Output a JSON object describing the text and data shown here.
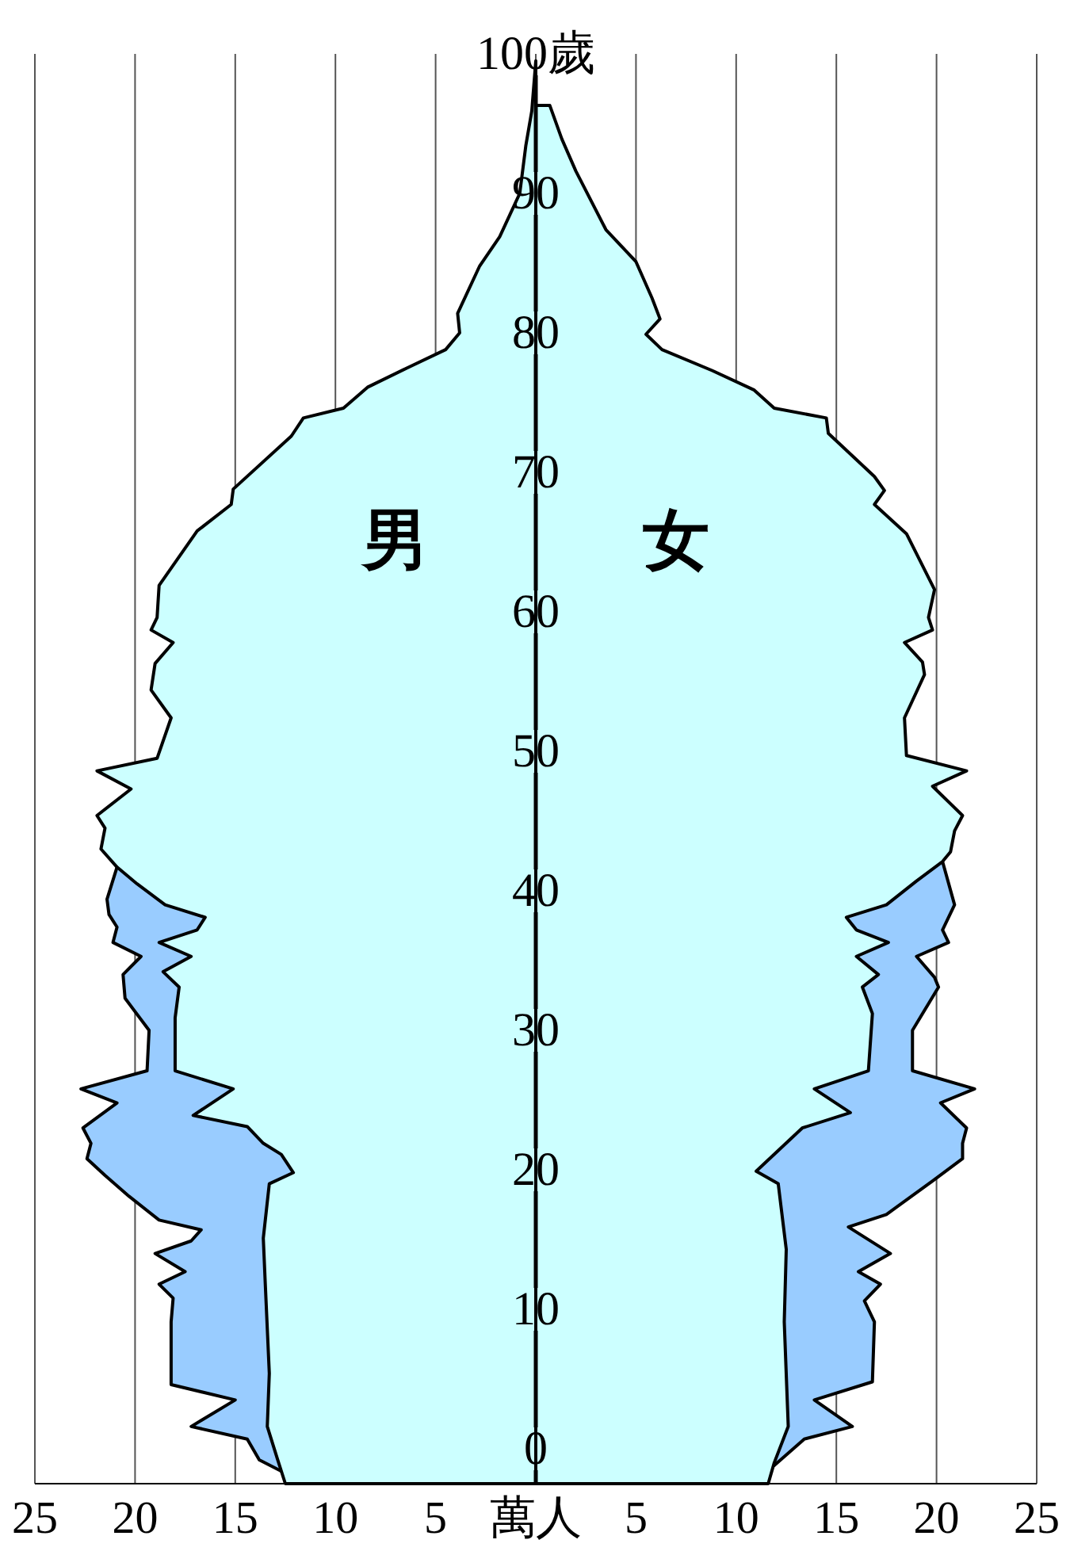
{
  "chart_data": {
    "type": "area",
    "orientation": "horizontal",
    "grid": "x",
    "xlim": [
      -25,
      25
    ],
    "ylim": [
      -2.5,
      100
    ],
    "xticks": [
      {
        "value": -25,
        "label": "25"
      },
      {
        "value": -20,
        "label": "20"
      },
      {
        "value": -15,
        "label": "15"
      },
      {
        "value": -10,
        "label": "10"
      },
      {
        "value": -5,
        "label": "5"
      },
      {
        "value": 0,
        "label": "萬人"
      },
      5,
      10,
      15,
      20,
      25
    ],
    "yticks": [
      0,
      10,
      20,
      30,
      40,
      50,
      60,
      70,
      80,
      90,
      {
        "value": 100,
        "label": "100歲"
      }
    ],
    "series": [
      {
        "color": "#99ccff",
        "x": [
          41.7,
          39.4,
          38.3,
          37.4,
          36.3,
          35.3,
          34.0,
          32.3,
          30.0,
          27.1,
          25.8,
          24.8,
          23.0,
          21.9,
          20.8,
          19.6,
          18.1,
          16.4,
          15.7,
          14.9,
          14.0,
          12.7,
          11.8,
          10.8,
          9.1,
          4.6,
          3.5,
          1.6,
          0.7,
          -0.8,
          -1.6
        ],
        "values": [
          -20.9,
          -21.4,
          -21.3,
          -20.9,
          -21.1,
          -19.7,
          -20.6,
          -20.5,
          -19.3,
          -19.4,
          -22.7,
          -20.9,
          -22.6,
          -22.2,
          -22.4,
          -21.5,
          -20.3,
          -18.8,
          -16.7,
          -17.2,
          -19,
          -17.5,
          -18.8,
          -18.1,
          -18.2,
          -18.2,
          -15,
          -17.2,
          -14.4,
          -13.8,
          -12.7
        ]
      },
      {
        "color": "#99ccff",
        "x": [
          42.1,
          39.0,
          37.2,
          36.3,
          35.3,
          33.8,
          33.1,
          30.0,
          27.1,
          25.8,
          24.8,
          23.0,
          21.9,
          20.8,
          19.2,
          16.8,
          15.9,
          14.0,
          12.7,
          11.8,
          10.6,
          9.1,
          4.8,
          3.5,
          1.6,
          0.7,
          -1.2
        ],
        "values": [
          20.3,
          20.9,
          20.3,
          20.6,
          19,
          19.9,
          20.1,
          18.8,
          18.8,
          21.9,
          20.2,
          21.5,
          21.3,
          21.3,
          19.8,
          17.5,
          15.6,
          17.7,
          16.1,
          17.2,
          16.4,
          16.9,
          16.8,
          13.9,
          15.8,
          13.4,
          11.9
        ]
      },
      {
        "name": "男",
        "color": "#ccffff",
        "x": [
          99.5,
          95.9,
          93.4,
          90.0,
          86.9,
          84.8,
          81.4,
          80.0,
          78.8,
          77.5,
          76.1,
          74.6,
          73.9,
          72.6,
          68.8,
          67.7,
          65.8,
          61.9,
          59.6,
          58.7,
          57.8,
          56.3,
          54.4,
          52.4,
          49.5,
          48.6,
          47.3,
          45.4,
          44.5,
          43.0,
          41.7,
          40.5,
          39.0,
          38.1,
          37.2,
          36.3,
          35.3,
          34.2,
          33.1,
          30.9,
          27.1,
          25.8,
          23.9,
          23.1,
          21.9,
          21.1,
          19.8,
          19.0,
          15.1,
          11.8,
          5.4,
          1.6,
          -0.7,
          -2.5
        ],
        "values": [
          0,
          -0.2,
          -0.5,
          -0.8,
          -1.8,
          -2.8,
          -3.9,
          -3.8,
          -4.5,
          -6.4,
          -8.4,
          -9.6,
          -11.6,
          -12.2,
          -15.1,
          -15.2,
          -16.9,
          -18.8,
          -18.9,
          -19.2,
          -18.1,
          -19,
          -19.2,
          -18.2,
          -18.9,
          -21.9,
          -20.2,
          -21.9,
          -21.5,
          -21.7,
          -20.9,
          -19.9,
          -18.5,
          -16.5,
          -16.9,
          -18.8,
          -17.2,
          -18.6,
          -17.8,
          -18,
          -18,
          -15.1,
          -17.1,
          -14.4,
          -13.6,
          -12.7,
          -12.1,
          -13.3,
          -13.6,
          -13.5,
          -13.3,
          -13.4,
          -12.9,
          -12.5
        ]
      },
      {
        "name": "女",
        "color": "#ccffff",
        "x": [
          96.3,
          93.9,
          91.6,
          87.4,
          85.1,
          82.5,
          81.0,
          79.9,
          78.8,
          77.3,
          75.9,
          74.6,
          73.9,
          72.8,
          69.7,
          68.7,
          67.7,
          65.6,
          61.6,
          59.6,
          58.7,
          57.8,
          56.4,
          55.5,
          52.4,
          49.7,
          48.6,
          47.5,
          45.4,
          44.3,
          42.8,
          42.1,
          40.7,
          39.0,
          38.1,
          37.2,
          36.3,
          35.3,
          34.0,
          33.1,
          31.2,
          27.1,
          25.8,
          24.1,
          23.0,
          19.9,
          19.0,
          14.3,
          9.1,
          1.6,
          -1.0,
          -2.5
        ],
        "values": [
          0.7,
          1.3,
          2,
          3.5,
          5,
          5.8,
          6.2,
          5.5,
          6.3,
          8.8,
          10.9,
          11.9,
          14.5,
          14.6,
          16.9,
          17.4,
          16.9,
          18.5,
          19.9,
          19.6,
          19.8,
          18.4,
          19.3,
          19.4,
          18.4,
          18.5,
          21.5,
          19.8,
          21.3,
          20.9,
          20.7,
          20.3,
          19,
          17.5,
          15.5,
          16,
          17.6,
          16,
          17.1,
          16.3,
          16.8,
          16.6,
          13.9,
          15.7,
          13.3,
          11,
          12.1,
          12.5,
          12.4,
          12.6,
          11.9,
          11.6
        ]
      }
    ]
  }
}
